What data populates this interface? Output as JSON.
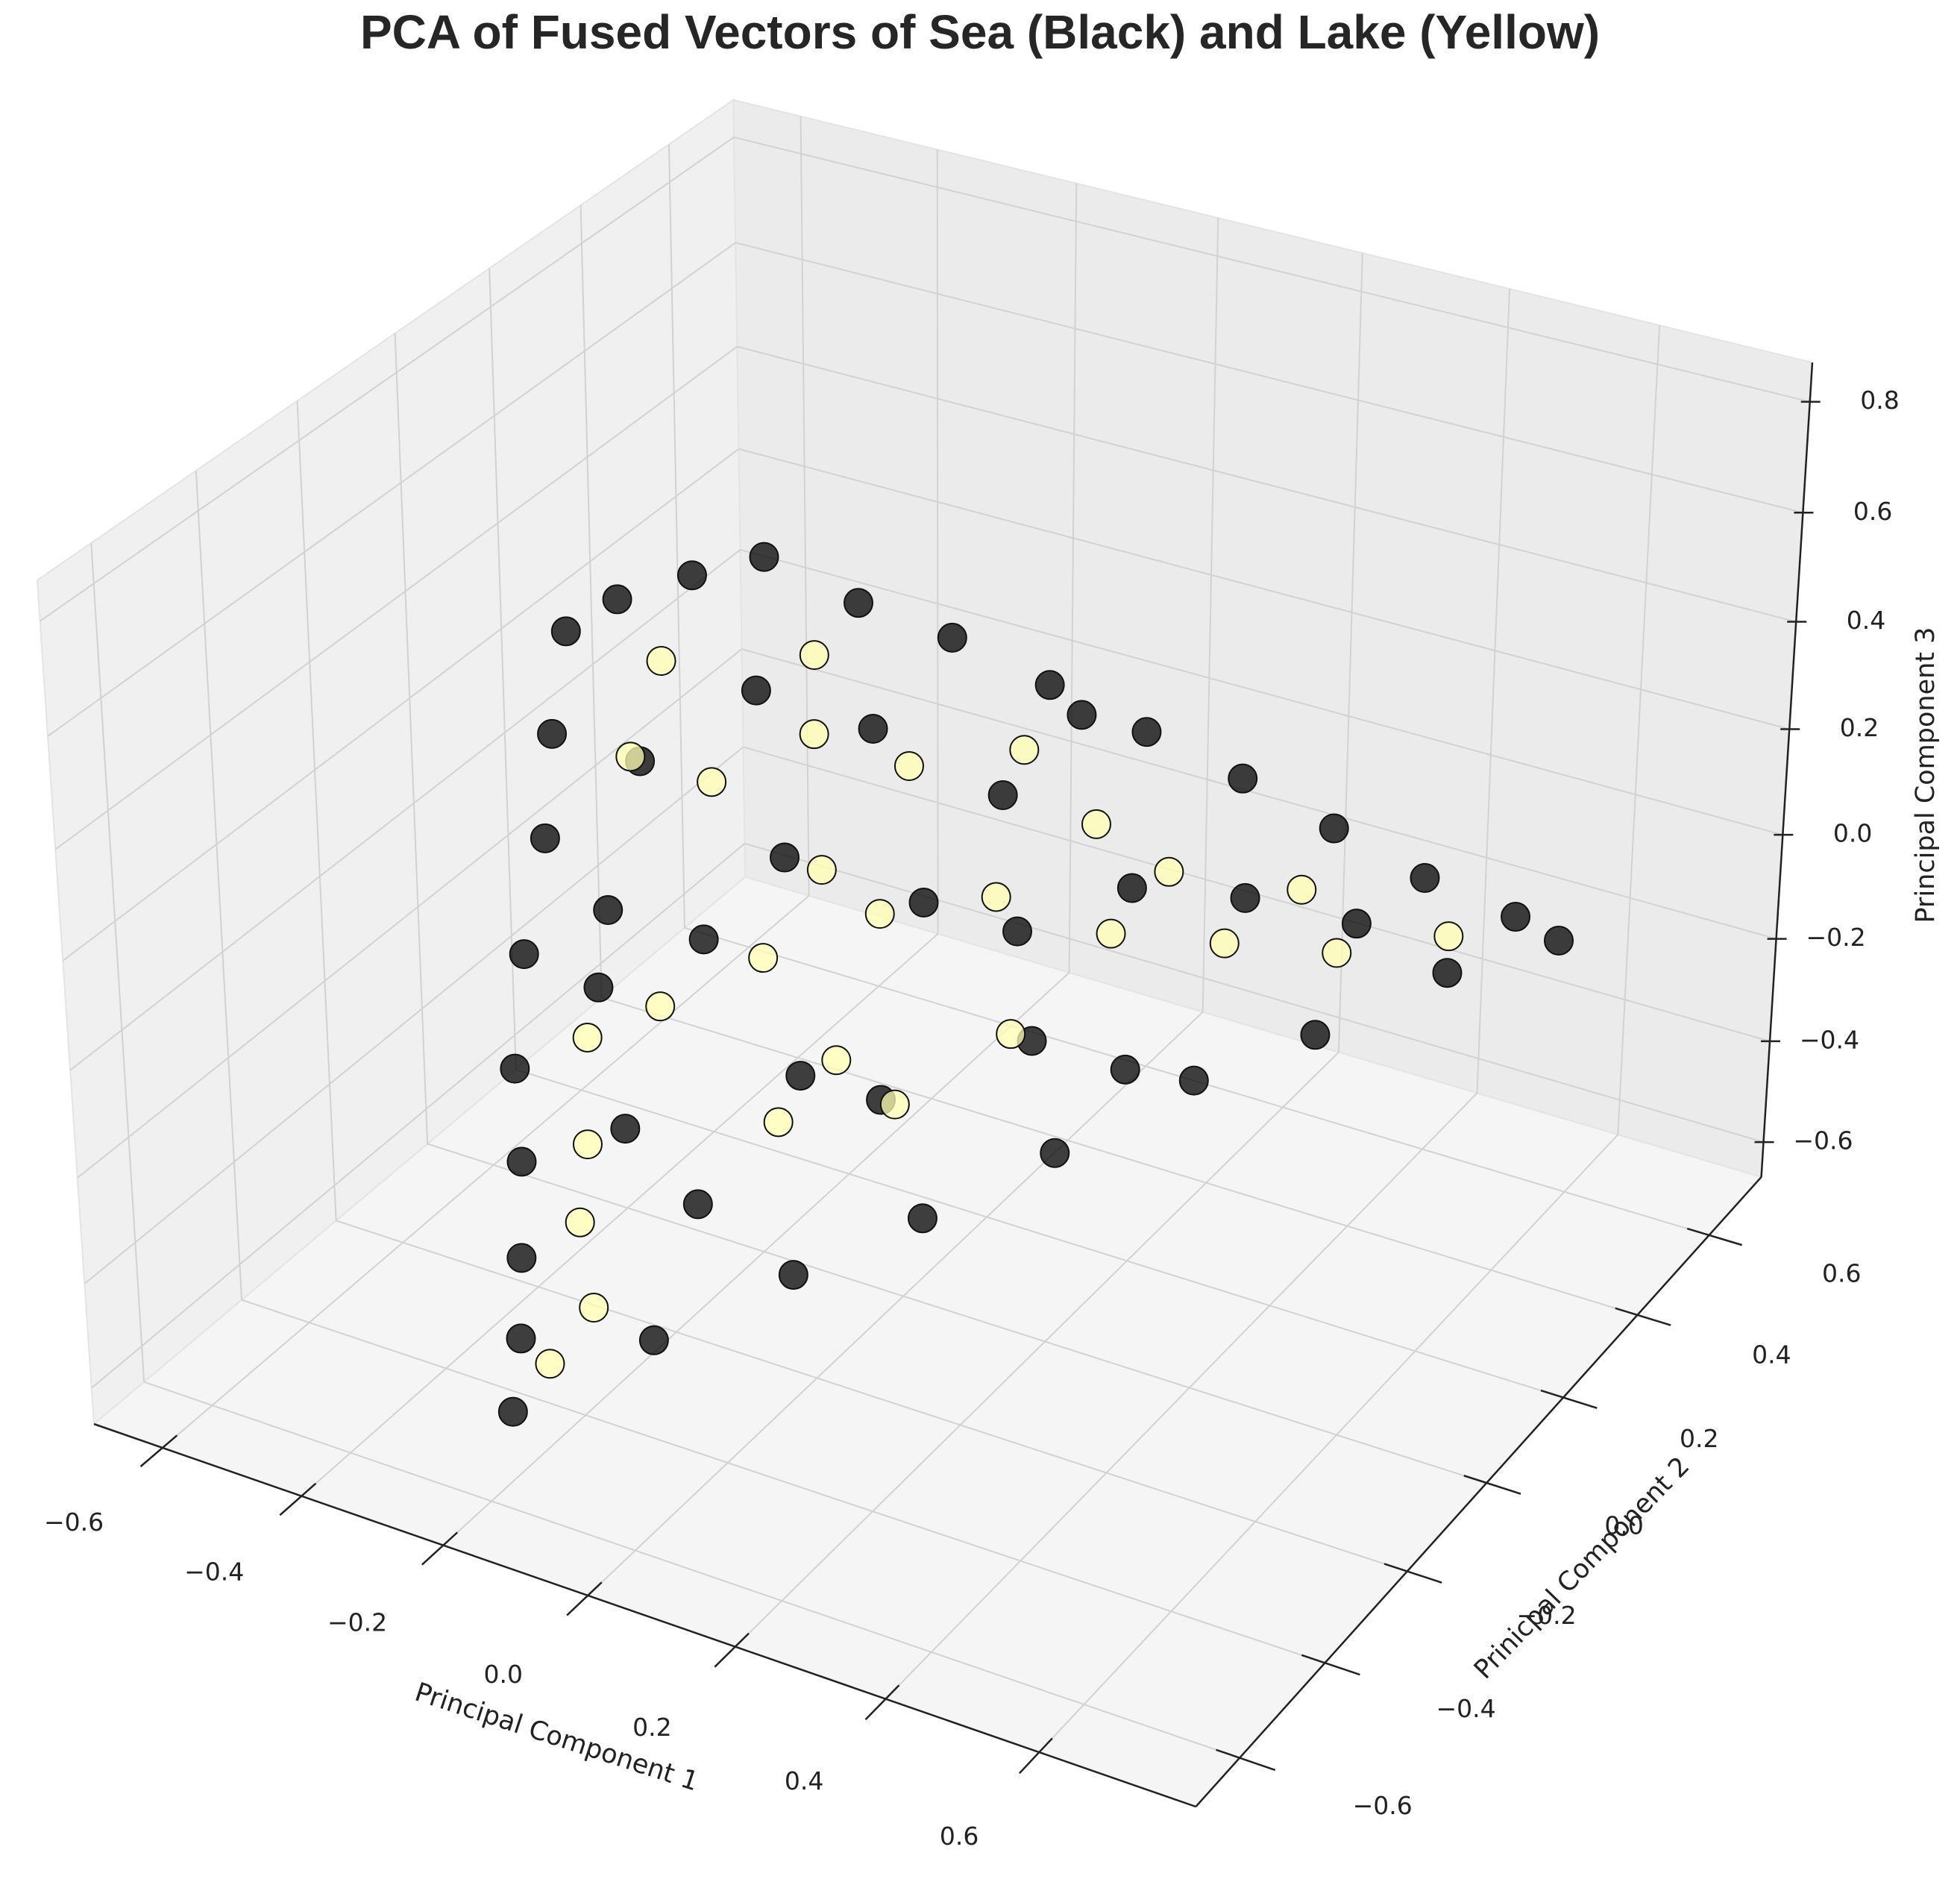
{
  "chart_data": {
    "type": "scatter3d",
    "title": "PCA of Fused Vectors of Sea (Black) and Lake (Yellow)",
    "xlabel": "Principal Component 1",
    "ylabel": "Prinicpal Component 2",
    "zlabel": "Principal Component 3",
    "xlim": [
      -0.7,
      0.8
    ],
    "ylim": [
      -0.7,
      0.75
    ],
    "zlim": [
      -0.67,
      0.87
    ],
    "xticks": [
      {
        "value": -0.6,
        "label": "−0.6"
      },
      {
        "value": -0.4,
        "label": "−0.4"
      },
      {
        "value": -0.2,
        "label": "−0.2"
      },
      {
        "value": 0,
        "label": "0.0"
      },
      0.2,
      0.4,
      0.6
    ],
    "yticks": [
      {
        "value": -0.6,
        "label": "−0.6"
      },
      {
        "value": -0.4,
        "label": "−0.4"
      },
      {
        "value": -0.2,
        "label": "−0.2"
      },
      {
        "value": 0,
        "label": "0.0"
      },
      0.2,
      0.4,
      0.6
    ],
    "zticks": [
      {
        "value": -0.6,
        "label": "−0.6"
      },
      {
        "value": -0.4,
        "label": "−0.4"
      },
      {
        "value": -0.2,
        "label": "−0.2"
      },
      {
        "value": 0,
        "label": "0.0"
      },
      0.2,
      0.4,
      0.6,
      0.8
    ],
    "grid": true,
    "series": [
      {
        "color": "#000000",
        "x": [
          -0.2,
          -0.22,
          -0.25,
          -0.28,
          -0.32,
          -0.35,
          -0.37,
          -0.39,
          -0.4,
          -0.36,
          -0.3,
          -0.25,
          -0.15,
          -0.05,
          0.05,
          0.15,
          0.25,
          0.35,
          0.45,
          0.55,
          0.6,
          0.5,
          0.4,
          0.3,
          0.2,
          0.1,
          0.0,
          -0.1,
          -0.15,
          -0.1,
          0.0,
          0.1,
          0.2,
          -0.2,
          -0.05,
          0.15,
          0.3,
          -0.3,
          -0.2,
          -0.1,
          0.05,
          0.4,
          -0.25,
          -0.1,
          0.25,
          0.0,
          -0.3,
          0.1
        ],
        "y": [
          -0.55,
          -0.5,
          -0.45,
          -0.4,
          -0.35,
          -0.28,
          -0.2,
          -0.15,
          -0.1,
          -0.05,
          0.02,
          0.1,
          0.15,
          0.2,
          0.26,
          0.32,
          0.38,
          0.43,
          0.48,
          0.53,
          0.55,
          0.45,
          0.3,
          0.18,
          0.02,
          -0.12,
          -0.25,
          -0.4,
          -0.2,
          -0.1,
          0.05,
          0.1,
          0.2,
          -0.3,
          -0.15,
          0.05,
          0.3,
          -0.1,
          0.0,
          0.1,
          0.15,
          0.4,
          -0.25,
          -0.3,
          0.1,
          -0.05,
          -0.2,
          0.25
        ],
        "z": [
          -0.54,
          -0.45,
          -0.35,
          -0.22,
          -0.1,
          0.05,
          0.2,
          0.35,
          0.5,
          0.54,
          0.56,
          0.56,
          0.48,
          0.42,
          0.33,
          0.24,
          0.15,
          0.06,
          -0.03,
          -0.1,
          -0.14,
          -0.17,
          -0.22,
          -0.26,
          -0.32,
          -0.38,
          -0.43,
          -0.48,
          0.1,
          0.2,
          0.05,
          0.0,
          0.05,
          -0.2,
          -0.15,
          -0.15,
          0.0,
          0.3,
          0.4,
          0.3,
          0.2,
          -0.08,
          0.15,
          -0.3,
          -0.2,
          -0.25,
          -0.05,
          0.3
        ]
      },
      {
        "color": "#ffffb3",
        "x": [
          -0.28,
          -0.2,
          -0.12,
          -0.25,
          -0.18,
          -0.1,
          0.0,
          0.1,
          0.2,
          0.3,
          0.4,
          0.5,
          -0.2,
          -0.15,
          -0.05,
          0.05,
          0.15,
          0.25,
          -0.05,
          -0.3,
          -0.15,
          0.05,
          0.15,
          -0.22,
          0.0,
          -0.08,
          0.35,
          -0.18
        ],
        "y": [
          -0.15,
          -0.1,
          0.0,
          -0.3,
          -0.25,
          -0.15,
          -0.05,
          0.05,
          0.15,
          0.25,
          0.35,
          0.45,
          -0.4,
          -0.45,
          -0.2,
          -0.1,
          0.0,
          0.2,
          0.1,
          -0.05,
          0.05,
          0.2,
          0.2,
          -0.35,
          -0.15,
          -0.05,
          0.35,
          -0.5
        ],
        "z": [
          0.35,
          0.3,
          0.35,
          -0.05,
          0.0,
          0.05,
          0.1,
          0.1,
          0.0,
          -0.05,
          -0.1,
          -0.1,
          -0.3,
          -0.4,
          -0.2,
          -0.2,
          -0.1,
          0.1,
          0.25,
          0.45,
          0.45,
          0.25,
          0.15,
          -0.2,
          -0.1,
          0.15,
          0.0,
          -0.48
        ]
      }
    ]
  }
}
